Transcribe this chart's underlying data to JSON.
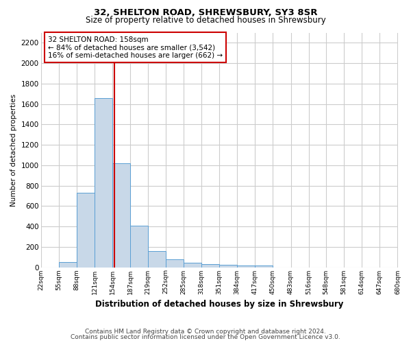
{
  "title1": "32, SHELTON ROAD, SHREWSBURY, SY3 8SR",
  "title2": "Size of property relative to detached houses in Shrewsbury",
  "xlabel": "Distribution of detached houses by size in Shrewsbury",
  "ylabel": "Number of detached properties",
  "footnote1": "Contains HM Land Registry data © Crown copyright and database right 2024.",
  "footnote2": "Contains public sector information licensed under the Open Government Licence v3.0.",
  "annotation_line1": "32 SHELTON ROAD: 158sqm",
  "annotation_line2": "← 84% of detached houses are smaller (3,542)",
  "annotation_line3": "16% of semi-detached houses are larger (662) →",
  "property_size": 158,
  "bar_left_edges": [
    22,
    55,
    88,
    121,
    154,
    187,
    219,
    252,
    285,
    318,
    351,
    384,
    417,
    450,
    483,
    516,
    548,
    581,
    614,
    647
  ],
  "bar_widths": [
    33,
    33,
    33,
    33,
    33,
    33,
    33,
    33,
    33,
    33,
    33,
    33,
    33,
    33,
    33,
    32,
    33,
    33,
    33,
    33
  ],
  "bar_heights": [
    0,
    50,
    730,
    1660,
    1020,
    410,
    155,
    80,
    43,
    30,
    22,
    20,
    15,
    0,
    0,
    0,
    0,
    0,
    0,
    0
  ],
  "tick_labels": [
    "22sqm",
    "55sqm",
    "88sqm",
    "121sqm",
    "154sqm",
    "187sqm",
    "219sqm",
    "252sqm",
    "285sqm",
    "318sqm",
    "351sqm",
    "384sqm",
    "417sqm",
    "450sqm",
    "483sqm",
    "516sqm",
    "548sqm",
    "581sqm",
    "614sqm",
    "647sqm",
    "680sqm"
  ],
  "tick_positions": [
    22,
    55,
    88,
    121,
    154,
    187,
    219,
    252,
    285,
    318,
    351,
    384,
    417,
    450,
    483,
    516,
    548,
    581,
    614,
    647,
    680
  ],
  "bar_color": "#c8d8e8",
  "bar_edge_color": "#5a9fd4",
  "red_line_color": "#cc0000",
  "grid_color": "#cccccc",
  "annotation_box_edge": "#cc0000",
  "background_color": "#ffffff",
  "ylim": [
    0,
    2300
  ],
  "yticks": [
    0,
    200,
    400,
    600,
    800,
    1000,
    1200,
    1400,
    1600,
    1800,
    2000,
    2200
  ]
}
